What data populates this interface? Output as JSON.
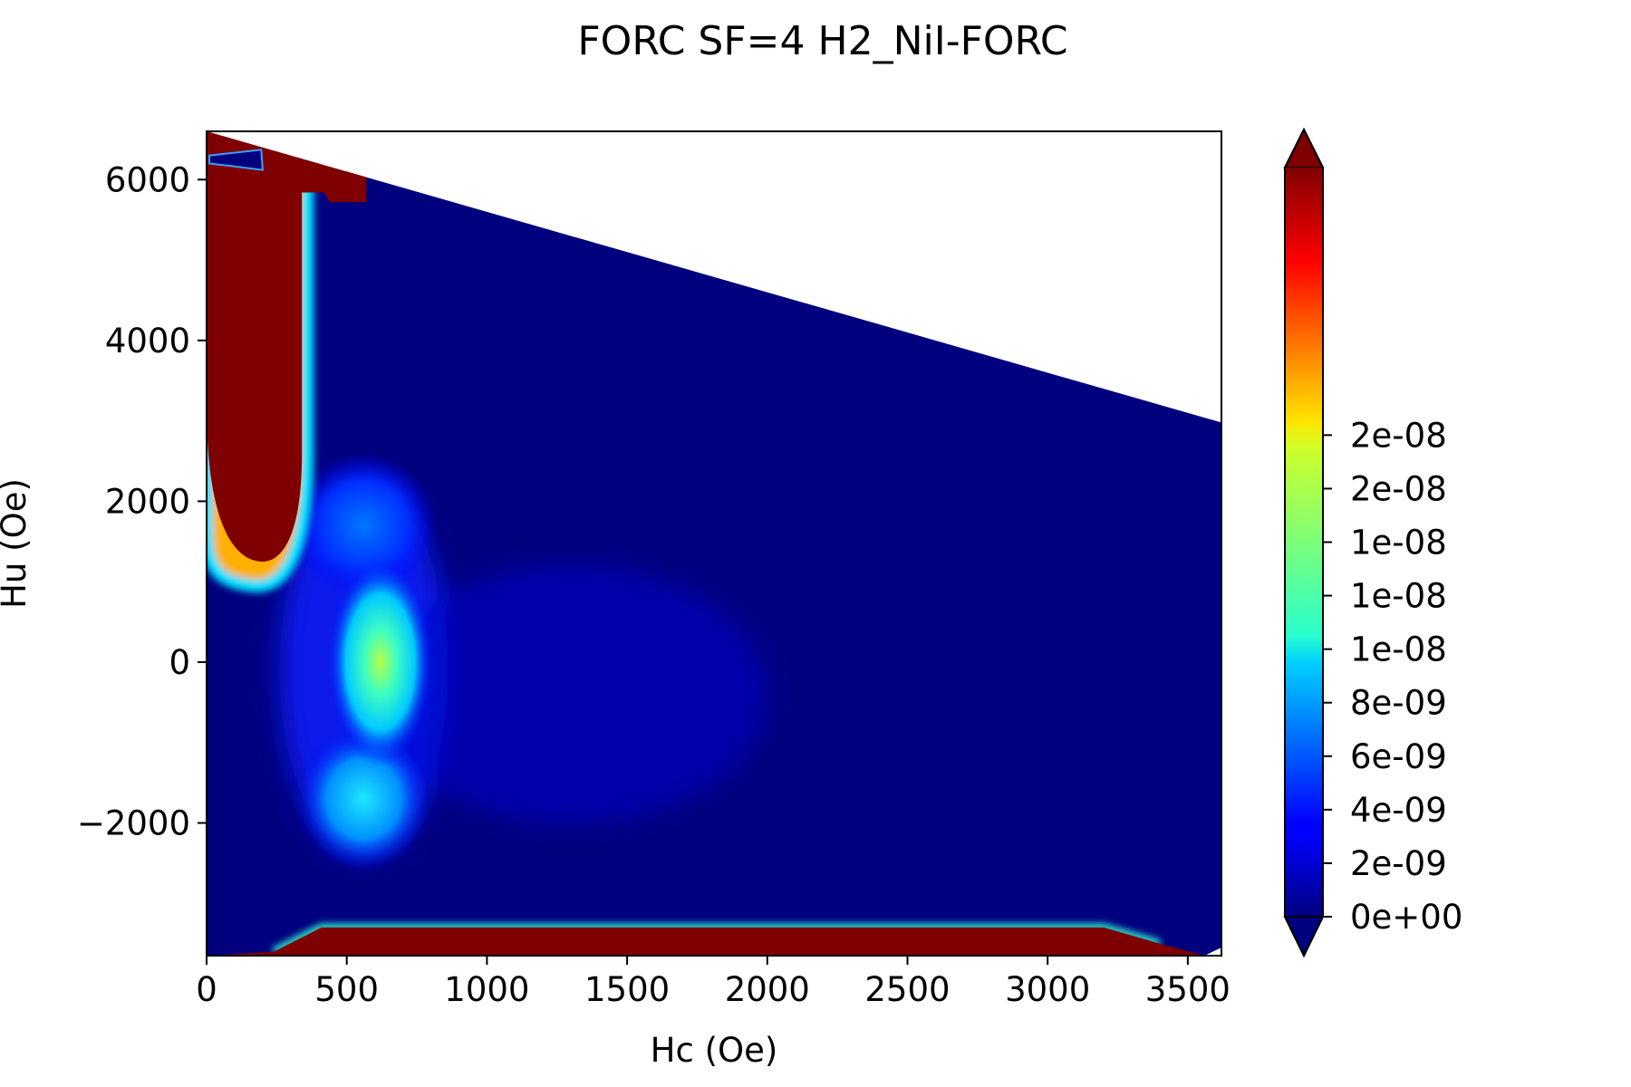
{
  "chart_data": {
    "type": "heatmap",
    "title": "FORC SF=4 H2_NiI-FORC",
    "xlabel": "Hc (Oe)",
    "ylabel": "Hu (Oe)",
    "xlim": [
      0,
      3620
    ],
    "ylim": [
      -3650,
      6600
    ],
    "x_ticks": [
      0,
      500,
      1000,
      1500,
      2000,
      2500,
      3000,
      3500
    ],
    "x_tick_labels": [
      "0",
      "500",
      "1000",
      "1500",
      "2000",
      "2500",
      "3000",
      "3500"
    ],
    "y_ticks": [
      -2000,
      0,
      2000,
      4000,
      6000
    ],
    "y_tick_labels": [
      "−2000",
      "0",
      "2000",
      "4000",
      "6000"
    ],
    "colorbar": {
      "colormap": "jet",
      "range": [
        0,
        2.8e-08
      ],
      "extend": "both",
      "ticks": [
        0,
        2e-09,
        4e-09,
        6e-09,
        8e-09,
        1e-08,
        1.2e-08,
        1.4e-08,
        1.6e-08,
        1.8e-08
      ],
      "tick_labels": [
        "0e+00",
        "2e-09",
        "4e-09",
        "6e-09",
        "8e-09",
        "1e-08",
        "1e-08",
        "1e-08",
        "2e-08",
        "2e-08"
      ]
    },
    "data_boundary": {
      "upper_edge": [
        [
          0,
          6600
        ],
        [
          3620,
          2980
        ]
      ],
      "lower_edge": [
        [
          0,
          -3650
        ],
        [
          3560,
          -3650
        ],
        [
          3620,
          -3550
        ]
      ]
    },
    "features": [
      {
        "kind": "saturated",
        "hc_range": [
          0,
          350
        ],
        "hu_range": [
          1300,
          6600
        ]
      },
      {
        "kind": "saturated",
        "hc_range": [
          0,
          3560
        ],
        "hu_range": [
          -3650,
          -3300
        ]
      },
      {
        "kind": "peak",
        "hc": 620,
        "hu": 0,
        "value": 1.15e-08
      },
      {
        "kind": "lobe",
        "hc": 560,
        "hu": -1800,
        "value": 6e-09
      },
      {
        "kind": "lobe",
        "hc": 560,
        "hu": 1900,
        "value": 4e-09
      }
    ],
    "colors": {
      "low": "#00007f",
      "high": "#7f0000"
    }
  }
}
